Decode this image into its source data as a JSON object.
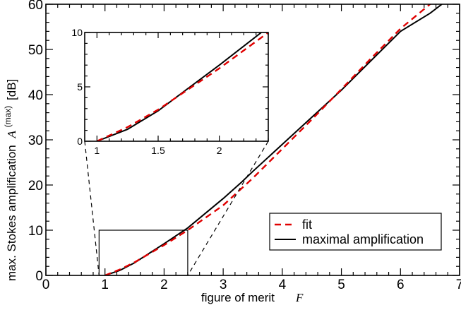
{
  "chart_data": {
    "type": "line",
    "xlabel": "figure of merit",
    "xlabel_symbol": "F",
    "ylabel": "max. Stokes amplification",
    "ylabel_symbol": "A",
    "ylabel_superscript": "(max)",
    "ylabel_unit": "[dB]",
    "xlim": [
      0,
      7
    ],
    "ylim": [
      0,
      60
    ],
    "x_ticks": [
      0,
      1,
      2,
      3,
      4,
      5,
      6,
      7
    ],
    "y_ticks": [
      0,
      10,
      20,
      30,
      40,
      50,
      60
    ],
    "x_tick_labels": [
      "0",
      "1",
      "2",
      "3",
      "4",
      "5",
      "6",
      "7"
    ],
    "y_tick_labels": [
      "0",
      "10",
      "20",
      "30",
      "40",
      "50",
      "60"
    ],
    "legend_position": "bottom-right",
    "series": [
      {
        "name": "fit",
        "color": "#e00000",
        "style": "dashed",
        "x": [
          1.0,
          1.25,
          1.5,
          1.75,
          2.0,
          2.4,
          3.0,
          3.5,
          4.0,
          4.5,
          5.0,
          5.5,
          6.0,
          6.5,
          6.75
        ],
        "y": [
          0.0,
          1.3,
          2.9,
          4.8,
          6.7,
          10.0,
          15.5,
          21.5,
          28.0,
          34.5,
          41.2,
          48.0,
          54.6,
          60.0,
          62.5
        ]
      },
      {
        "name": "maximal amplification",
        "color": "#000000",
        "style": "solid",
        "x": [
          1.0,
          1.25,
          1.5,
          1.75,
          2.0,
          2.4,
          3.0,
          3.3,
          3.5,
          4.0,
          4.5,
          5.0,
          5.5,
          6.0,
          6.5,
          6.7
        ],
        "y": [
          0.0,
          1.1,
          2.8,
          4.9,
          7.0,
          10.5,
          17.0,
          20.5,
          23.0,
          29.0,
          35.0,
          41.0,
          47.5,
          54.0,
          58.0,
          60.0
        ]
      }
    ],
    "inset": {
      "xlim": [
        0.9,
        2.4
      ],
      "ylim": [
        0,
        10
      ],
      "x_ticks": [
        1,
        1.5,
        2
      ],
      "y_ticks": [
        0,
        5,
        10
      ],
      "x_tick_labels": [
        "1",
        "1.5",
        "2"
      ],
      "y_tick_labels": [
        "0",
        "5",
        "10"
      ],
      "zoom_region": {
        "x": [
          0.9,
          2.4
        ],
        "y": [
          0,
          10
        ]
      }
    }
  }
}
